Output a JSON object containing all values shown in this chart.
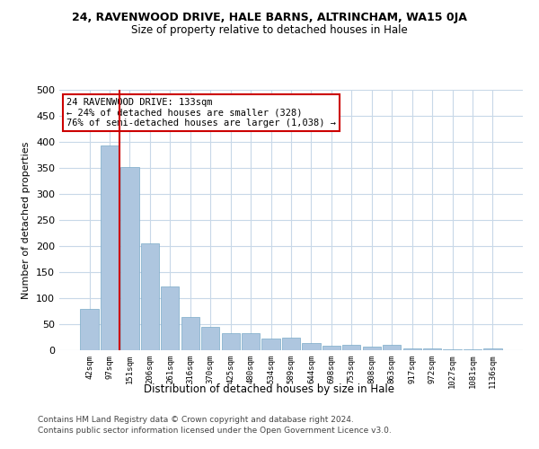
{
  "title_line1": "24, RAVENWOOD DRIVE, HALE BARNS, ALTRINCHAM, WA15 0JA",
  "title_line2": "Size of property relative to detached houses in Hale",
  "xlabel": "Distribution of detached houses by size in Hale",
  "ylabel": "Number of detached properties",
  "categories": [
    "42sqm",
    "97sqm",
    "151sqm",
    "206sqm",
    "261sqm",
    "316sqm",
    "370sqm",
    "425sqm",
    "480sqm",
    "534sqm",
    "589sqm",
    "644sqm",
    "698sqm",
    "753sqm",
    "808sqm",
    "863sqm",
    "917sqm",
    "972sqm",
    "1027sqm",
    "1081sqm",
    "1136sqm"
  ],
  "values": [
    80,
    393,
    352,
    205,
    122,
    64,
    44,
    32,
    32,
    23,
    24,
    14,
    8,
    10,
    7,
    10,
    3,
    3,
    2,
    2,
    4
  ],
  "bar_color": "#aec6df",
  "bar_edge_color": "#7aaac8",
  "vline_x_index": 2,
  "vline_color": "#cc0000",
  "annotation_text": "24 RAVENWOOD DRIVE: 133sqm\n← 24% of detached houses are smaller (328)\n76% of semi-detached houses are larger (1,038) →",
  "annotation_box_color": "#ffffff",
  "annotation_box_edge": "#cc0000",
  "ylim": [
    0,
    500
  ],
  "yticks": [
    0,
    50,
    100,
    150,
    200,
    250,
    300,
    350,
    400,
    450,
    500
  ],
  "footer_line1": "Contains HM Land Registry data © Crown copyright and database right 2024.",
  "footer_line2": "Contains public sector information licensed under the Open Government Licence v3.0.",
  "background_color": "#ffffff",
  "grid_color": "#c8d8e8"
}
